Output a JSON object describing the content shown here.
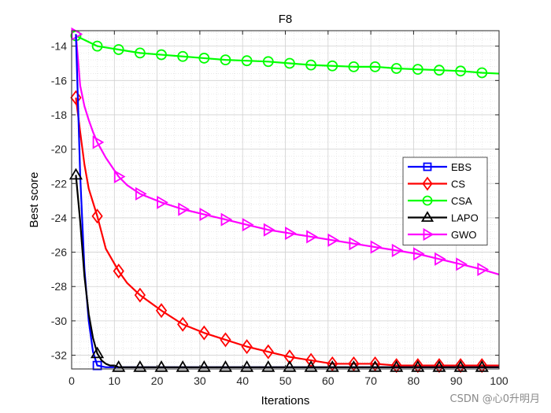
{
  "chart_data": {
    "type": "line",
    "title": "F8",
    "xlabel": "Iterations",
    "ylabel": "Best score",
    "xlim": [
      0,
      100
    ],
    "ylim": [
      -32.8,
      -13.1
    ],
    "xticks": [
      0,
      10,
      20,
      30,
      40,
      50,
      60,
      70,
      80,
      90,
      100
    ],
    "yticks": [
      -32,
      -30,
      -28,
      -26,
      -24,
      -22,
      -20,
      -18,
      -16,
      -14
    ],
    "grid": true,
    "legend_position": "right",
    "series": [
      {
        "name": "EBS",
        "color": "#0000ff",
        "marker": "square",
        "x": [
          1,
          2,
          3,
          4,
          5,
          6,
          8,
          11,
          16,
          21,
          26,
          31,
          36,
          41,
          46,
          51,
          56,
          61,
          66,
          71,
          76,
          81,
          86,
          91,
          96,
          100
        ],
        "y": [
          -13.3,
          -21.5,
          -27.0,
          -30.0,
          -31.8,
          -32.6,
          -32.7,
          -32.7,
          -32.7,
          -32.7,
          -32.7,
          -32.7,
          -32.7,
          -32.7,
          -32.7,
          -32.7,
          -32.7,
          -32.7,
          -32.7,
          -32.7,
          -32.7,
          -32.7,
          -32.7,
          -32.7,
          -32.7,
          -32.7
        ],
        "marker_x": [
          6
        ]
      },
      {
        "name": "CS",
        "color": "#ff0000",
        "marker": "diamond",
        "x": [
          1,
          2,
          3,
          4,
          6,
          8,
          11,
          13,
          16,
          21,
          26,
          31,
          36,
          41,
          46,
          51,
          56,
          61,
          66,
          71,
          76,
          81,
          86,
          91,
          96,
          100
        ],
        "y": [
          -17.0,
          -19.0,
          -20.9,
          -22.3,
          -23.9,
          -25.8,
          -27.1,
          -27.8,
          -28.5,
          -29.4,
          -30.2,
          -30.7,
          -31.1,
          -31.5,
          -31.8,
          -32.1,
          -32.3,
          -32.5,
          -32.5,
          -32.5,
          -32.6,
          -32.6,
          -32.6,
          -32.6,
          -32.6,
          -32.6
        ],
        "marker_x": [
          1,
          6,
          11,
          16,
          21,
          26,
          31,
          36,
          41,
          46,
          51,
          56,
          61,
          66,
          71,
          76,
          81,
          86,
          91,
          96
        ]
      },
      {
        "name": "CSA",
        "color": "#00ff00",
        "marker": "circle",
        "x": [
          1,
          6,
          11,
          16,
          21,
          26,
          31,
          36,
          41,
          46,
          51,
          56,
          61,
          66,
          71,
          76,
          81,
          86,
          91,
          96,
          100
        ],
        "y": [
          -13.4,
          -14.0,
          -14.2,
          -14.4,
          -14.5,
          -14.6,
          -14.7,
          -14.8,
          -14.85,
          -14.9,
          -15.0,
          -15.1,
          -15.15,
          -15.2,
          -15.2,
          -15.3,
          -15.35,
          -15.4,
          -15.45,
          -15.55,
          -15.6
        ],
        "marker_x": [
          1,
          6,
          11,
          16,
          21,
          26,
          31,
          36,
          41,
          46,
          51,
          56,
          61,
          66,
          71,
          76,
          81,
          86,
          91,
          96
        ]
      },
      {
        "name": "LAPO",
        "color": "#000000",
        "marker": "triangle-up",
        "x": [
          1,
          2,
          3,
          4,
          5,
          6,
          7,
          8,
          9,
          10,
          11,
          16,
          21,
          26,
          31,
          36,
          41,
          46,
          51,
          56,
          61,
          66,
          71,
          76,
          81,
          86,
          91,
          96,
          100
        ],
        "y": [
          -21.5,
          -24.2,
          -27.4,
          -29.6,
          -31.0,
          -31.9,
          -32.3,
          -32.5,
          -32.6,
          -32.6,
          -32.7,
          -32.7,
          -32.7,
          -32.7,
          -32.7,
          -32.7,
          -32.7,
          -32.7,
          -32.7,
          -32.7,
          -32.7,
          -32.7,
          -32.7,
          -32.7,
          -32.7,
          -32.7,
          -32.7,
          -32.7,
          -32.7
        ],
        "marker_x": [
          1,
          6,
          11,
          16,
          21,
          26,
          31,
          36,
          41,
          46,
          51,
          56,
          61,
          66,
          71,
          76,
          81,
          86,
          91,
          96
        ]
      },
      {
        "name": "GWO",
        "color": "#ff00ff",
        "marker": "triangle-right",
        "x": [
          1,
          2,
          3,
          4,
          5,
          6,
          8,
          11,
          13,
          16,
          21,
          26,
          31,
          36,
          41,
          46,
          51,
          56,
          61,
          66,
          71,
          76,
          81,
          86,
          91,
          96,
          100
        ],
        "y": [
          -13.3,
          -16.3,
          -17.5,
          -18.3,
          -19.0,
          -19.6,
          -20.5,
          -21.6,
          -22.1,
          -22.6,
          -23.1,
          -23.5,
          -23.8,
          -24.1,
          -24.4,
          -24.7,
          -24.9,
          -25.1,
          -25.3,
          -25.5,
          -25.7,
          -25.9,
          -26.1,
          -26.4,
          -26.7,
          -27.0,
          -27.3
        ],
        "marker_x": [
          1,
          6,
          11,
          16,
          21,
          26,
          31,
          36,
          41,
          46,
          51,
          56,
          61,
          66,
          71,
          76,
          81,
          86,
          91,
          96
        ]
      }
    ]
  },
  "watermark": "CSDN @心0升明月"
}
